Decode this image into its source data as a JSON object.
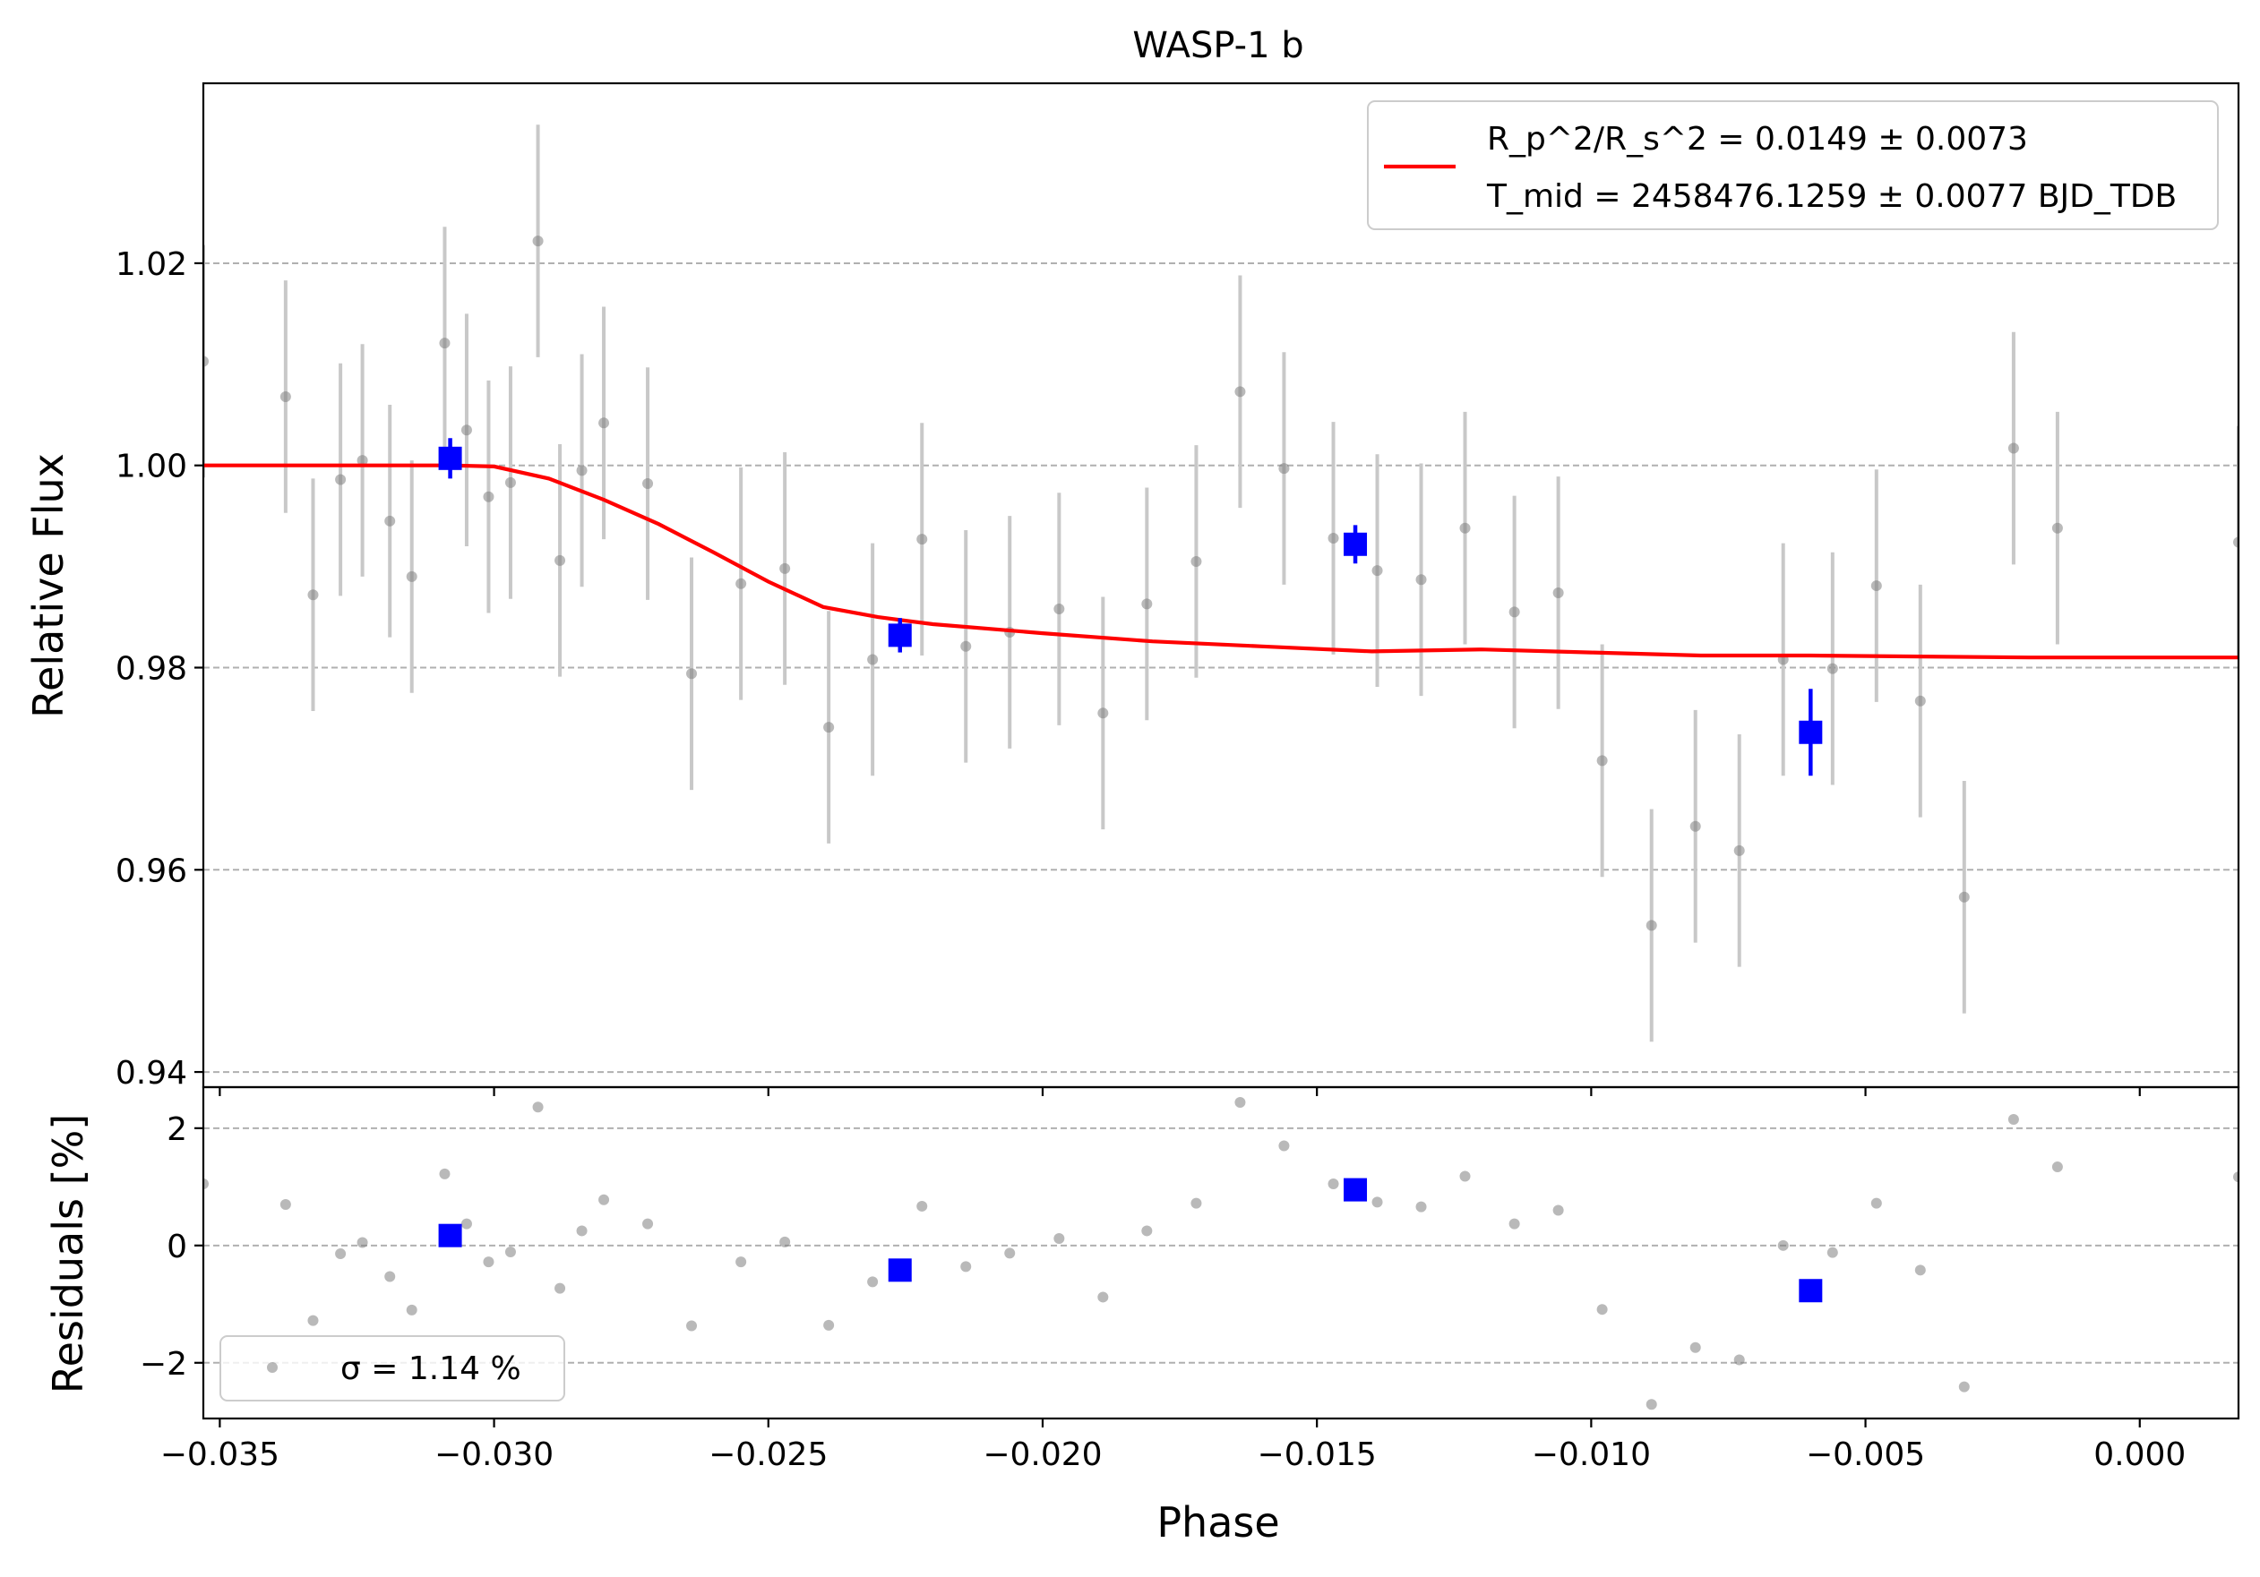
{
  "colors": {
    "model": "#ff0000",
    "binned": "#0000ff",
    "points": "#808080",
    "errorbars": "#c8c8c8",
    "grid": "#b0b0b0"
  },
  "chart_data": [
    {
      "type": "scatter",
      "panel": "main",
      "title": "WASP-1 b",
      "ylabel": "Relative Flux",
      "xlim": [
        -0.0353,
        0.0018
      ],
      "ylim": [
        0.9385,
        1.0378
      ],
      "yticks": [
        0.94,
        0.96,
        0.98,
        1.0,
        1.02
      ],
      "ytick_labels": [
        "0.94",
        "0.96",
        "0.98",
        "1.00",
        "1.02"
      ],
      "grid": true,
      "legend_position": "upper right",
      "legend": {
        "line1": "R_p^2/R_s^2 = 0.0149 ± 0.0073",
        "line2": "T_mid = 2458476.1259 ± 0.0077 BJD_TDB"
      },
      "series": [
        {
          "name": "data",
          "x": [
            -0.0353,
            -0.0338,
            -0.0333,
            -0.0328,
            -0.0324,
            -0.0319,
            -0.0315,
            -0.0309,
            -0.0305,
            -0.0301,
            -0.0297,
            -0.0292,
            -0.0288,
            -0.0284,
            -0.028,
            -0.0272,
            -0.0264,
            -0.0255,
            -0.0247,
            -0.0239,
            -0.0231,
            -0.0222,
            -0.0214,
            -0.0206,
            -0.0197,
            -0.0189,
            -0.0181,
            -0.0172,
            -0.0164,
            -0.0156,
            -0.0147,
            -0.0139,
            -0.0131,
            -0.0123,
            -0.0114,
            -0.0106,
            -0.0098,
            -0.0089,
            -0.0081,
            -0.0073,
            -0.0065,
            -0.0056,
            -0.0048,
            -0.004,
            -0.0032,
            -0.0023,
            -0.0015,
            0.0018
          ],
          "y": [
            1.0103,
            1.0068,
            0.9872,
            0.9986,
            1.0005,
            0.9945,
            0.989,
            1.0121,
            1.0035,
            0.9969,
            0.9983,
            1.0222,
            0.9906,
            0.9995,
            1.0042,
            0.9982,
            0.9794,
            0.9883,
            0.9898,
            0.9741,
            0.9808,
            0.9927,
            0.9821,
            0.9835,
            0.9858,
            0.9755,
            0.9863,
            0.9905,
            1.0073,
            0.9997,
            0.9928,
            0.9896,
            0.9887,
            0.9938,
            0.9855,
            0.9874,
            0.9708,
            0.9545,
            0.9643,
            0.9619,
            0.9808,
            0.9799,
            0.9881,
            0.9767,
            0.9573,
            1.0017,
            0.9938,
            0.9924
          ],
          "yerr": [
            0.0115,
            0.0115,
            0.0115,
            0.0115,
            0.0115,
            0.0115,
            0.0115,
            0.0115,
            0.0115,
            0.0115,
            0.0115,
            0.0115,
            0.0115,
            0.0115,
            0.0115,
            0.0115,
            0.0115,
            0.0115,
            0.0115,
            0.0115,
            0.0115,
            0.0115,
            0.0115,
            0.0115,
            0.0115,
            0.0115,
            0.0115,
            0.0115,
            0.0115,
            0.0115,
            0.0115,
            0.0115,
            0.0115,
            0.0115,
            0.0115,
            0.0115,
            0.0115,
            0.0115,
            0.0115,
            0.0115,
            0.0115,
            0.0115,
            0.0115,
            0.0115,
            0.0115,
            0.0115,
            0.0115,
            0.0115
          ]
        },
        {
          "name": "binned",
          "x": [
            -0.0308,
            -0.0226,
            -0.0143,
            -0.006
          ],
          "y": [
            1.0007,
            0.9832,
            0.9922,
            0.9736
          ],
          "yerr": [
            0.002,
            0.0017,
            0.0019,
            0.0043
          ]
        },
        {
          "name": "model",
          "x": [
            -0.0353,
            -0.032,
            -0.0308,
            -0.03,
            -0.029,
            -0.028,
            -0.027,
            -0.026,
            -0.025,
            -0.024,
            -0.023,
            -0.022,
            -0.02,
            -0.018,
            -0.016,
            -0.014,
            -0.012,
            -0.01,
            -0.008,
            -0.006,
            -0.004,
            -0.002,
            0.0,
            0.0018
          ],
          "y": [
            1.0,
            1.0,
            1.0,
            0.9999,
            0.9987,
            0.9966,
            0.9942,
            0.9914,
            0.9885,
            0.986,
            0.985,
            0.9843,
            0.9834,
            0.9826,
            0.9821,
            0.9816,
            0.9818,
            0.9815,
            0.9812,
            0.9812,
            0.9811,
            0.981,
            0.981,
            0.981
          ]
        }
      ]
    },
    {
      "type": "scatter",
      "panel": "residuals",
      "xlabel": "Phase",
      "ylabel": "Residuals [%]",
      "xlim": [
        -0.0353,
        0.0018
      ],
      "ylim": [
        -2.95,
        2.7
      ],
      "xticks": [
        -0.035,
        -0.03,
        -0.025,
        -0.02,
        -0.015,
        -0.01,
        -0.005,
        0.0
      ],
      "xtick_labels": [
        "−0.035",
        "−0.030",
        "−0.025",
        "−0.020",
        "−0.015",
        "−0.010",
        "−0.005",
        "0.000"
      ],
      "yticks": [
        -2,
        0,
        2
      ],
      "ytick_labels": [
        "−2",
        "0",
        "2"
      ],
      "grid": true,
      "legend_position": "lower left",
      "legend": {
        "label": "σ = 1.14 %"
      },
      "series": [
        {
          "name": "residuals",
          "x": [
            -0.0353,
            -0.0338,
            -0.0333,
            -0.0328,
            -0.0324,
            -0.0319,
            -0.0315,
            -0.0309,
            -0.0305,
            -0.0301,
            -0.0297,
            -0.0292,
            -0.0288,
            -0.0284,
            -0.028,
            -0.0272,
            -0.0264,
            -0.0255,
            -0.0247,
            -0.0239,
            -0.0231,
            -0.0222,
            -0.0214,
            -0.0206,
            -0.0197,
            -0.0189,
            -0.0181,
            -0.0172,
            -0.0164,
            -0.0156,
            -0.0147,
            -0.0139,
            -0.0131,
            -0.0123,
            -0.0114,
            -0.0106,
            -0.0098,
            -0.0089,
            -0.0081,
            -0.0073,
            -0.0065,
            -0.0056,
            -0.0048,
            -0.004,
            -0.0032,
            -0.0023,
            -0.0015,
            0.0018
          ],
          "y": [
            1.05,
            0.7,
            -1.28,
            -0.14,
            0.05,
            -0.53,
            -1.1,
            1.22,
            0.37,
            -0.28,
            -0.11,
            2.36,
            -0.73,
            0.25,
            0.78,
            0.37,
            -1.37,
            -0.28,
            0.06,
            -1.36,
            -0.62,
            0.67,
            -0.36,
            -0.13,
            0.12,
            -0.88,
            0.25,
            0.72,
            2.44,
            1.7,
            1.05,
            0.74,
            0.66,
            1.18,
            0.37,
            0.6,
            -1.09,
            -2.71,
            -1.74,
            -1.95,
            0.0,
            -0.12,
            0.72,
            -0.42,
            -2.41,
            2.15,
            1.34,
            1.17
          ]
        },
        {
          "name": "binned residuals",
          "x": [
            -0.0308,
            -0.0226,
            -0.0143,
            -0.006
          ],
          "y": [
            0.17,
            -0.42,
            0.95,
            -0.77
          ]
        }
      ]
    }
  ]
}
